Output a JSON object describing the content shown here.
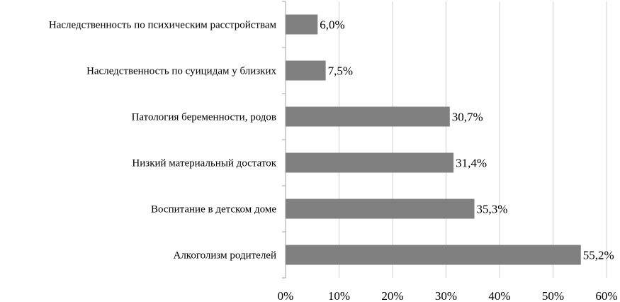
{
  "chart_data": {
    "type": "bar",
    "orientation": "horizontal",
    "categories": [
      "Наследственность по психическим расстройствам",
      "Наследственность по суицидам у близких",
      "Патология беременности, родов",
      "Низкий материальный достаток",
      "Воспитание в детском доме",
      "Алкоголизм родителей"
    ],
    "values": [
      6.0,
      7.5,
      30.7,
      31.4,
      35.3,
      55.2
    ],
    "value_labels": [
      "6,0%",
      "7,5%",
      "30,7%",
      "31,4%",
      "35,3%",
      "55,2%"
    ],
    "x_ticks": [
      "0%",
      "10%",
      "20%",
      "30%",
      "40%",
      "50%",
      "60%"
    ],
    "xlim": [
      0,
      60
    ],
    "grid": true,
    "legend": "none",
    "bar_color": "#808080",
    "title": "",
    "xlabel": "",
    "ylabel": ""
  }
}
